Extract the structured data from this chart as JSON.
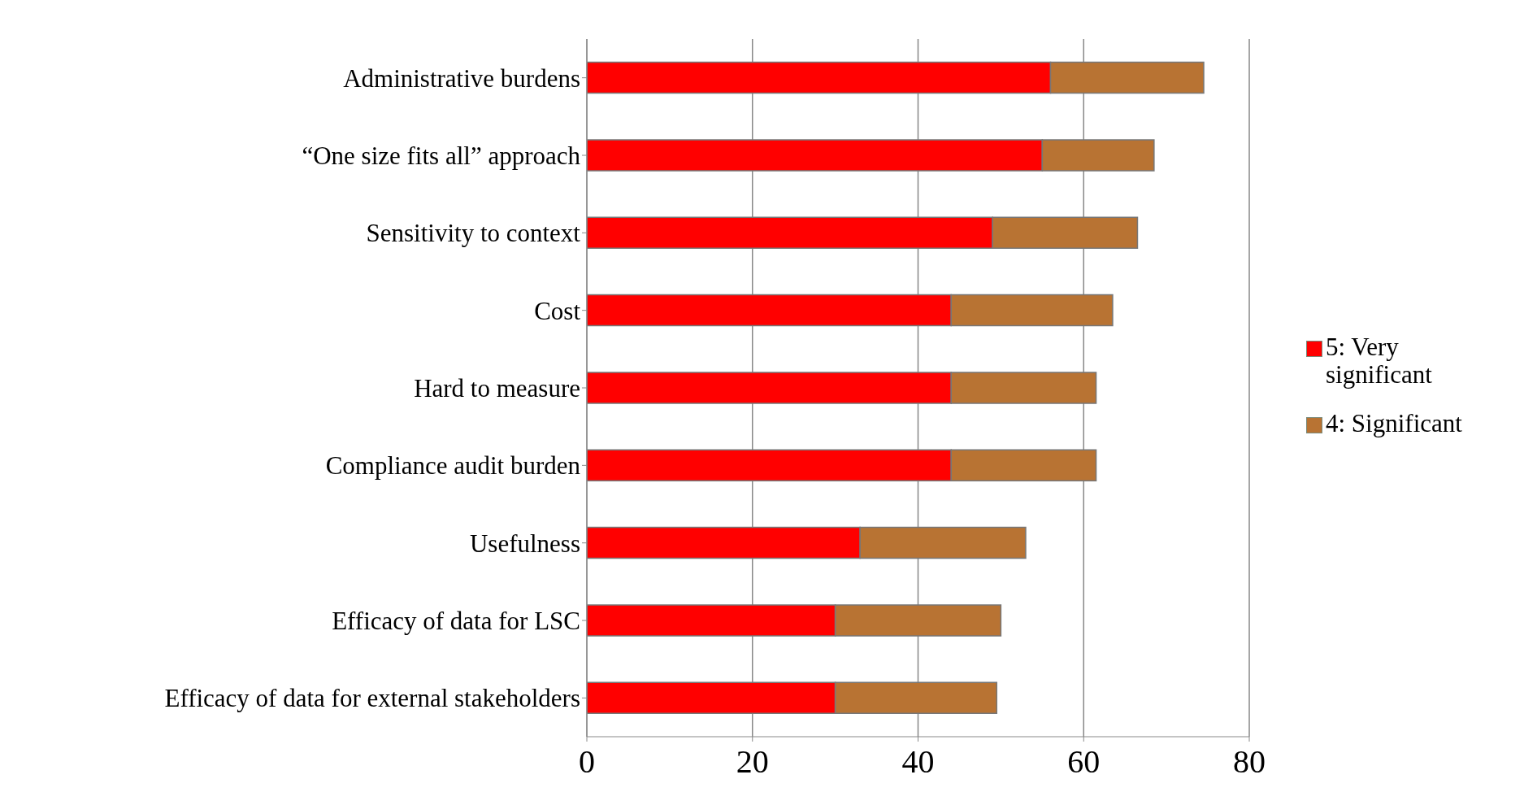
{
  "chart_data": {
    "type": "bar",
    "orientation": "horizontal",
    "stacked": true,
    "categories": [
      "Administrative burdens",
      "“One size fits all” approach",
      "Sensitivity to context",
      "Cost",
      "Hard to measure",
      "Compliance audit burden",
      "Usefulness",
      "Efficacy of data for LSC",
      "Efficacy of data for external stakeholders"
    ],
    "series": [
      {
        "name": "5: Very significant",
        "color": "#ff0000",
        "values": [
          56,
          55,
          49,
          44,
          44,
          44,
          33,
          30,
          30
        ]
      },
      {
        "name": "4: Significant",
        "color": "#b87333",
        "values": [
          18.5,
          13.5,
          17.5,
          19.5,
          17.5,
          17.5,
          20,
          20,
          19.5
        ]
      }
    ],
    "xlim": [
      0,
      80
    ],
    "xticks": [
      0,
      20,
      40,
      60,
      80
    ],
    "grid": "x",
    "legend": "right"
  }
}
